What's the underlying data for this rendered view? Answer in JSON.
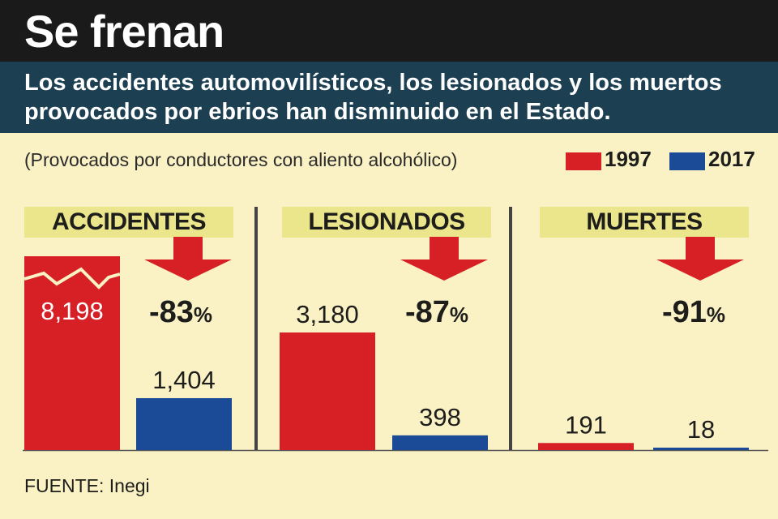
{
  "title": "Se frenan",
  "subtitle": "Los accidentes automovilísticos, los lesionados y los muertos provocados por ebrios han disminuido en el Estado.",
  "note": "(Provocados por conductores con aliento alcohólico)",
  "source": "FUENTE: Inegi",
  "colors": {
    "y1997": "#d62026",
    "y2017": "#1b4b96",
    "arrow": "#d62026",
    "header_bg": "#ebe58c",
    "background": "#faf2c4"
  },
  "chart_data": {
    "type": "bar",
    "legend": {
      "placement": "top-right",
      "entries": [
        "1997",
        "2017"
      ]
    },
    "series_names": [
      "1997",
      "2017"
    ],
    "panels": [
      {
        "category": "ACCIDENTES",
        "values": [
          8198,
          1404
        ],
        "labels": [
          "8,198",
          "1,404"
        ],
        "change_value": "-83",
        "change_unit": "%",
        "axis_break": true
      },
      {
        "category": "LESIONADOS",
        "values": [
          3180,
          398
        ],
        "labels": [
          "3,180",
          "398"
        ],
        "change_value": "-87",
        "change_unit": "%",
        "axis_break": false
      },
      {
        "category": "MUERTES",
        "values": [
          191,
          18
        ],
        "labels": [
          "191",
          "18"
        ],
        "change_value": "-91",
        "change_unit": "%",
        "axis_break": false
      }
    ]
  }
}
